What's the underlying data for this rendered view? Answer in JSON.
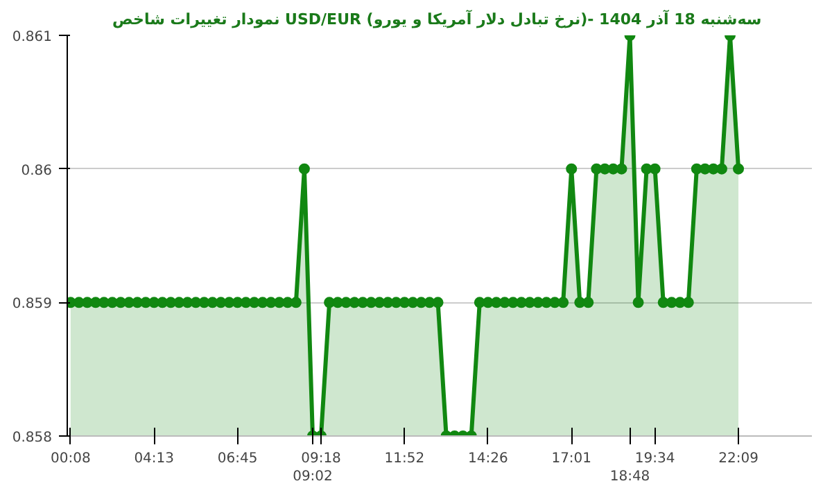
{
  "chart_data": {
    "type": "area",
    "title": "نمودار تغییرات شاخص USD/EUR (نرخ تبادل دلار آمریکا و یورو)- سه‌شنبه  18 آذر 1404",
    "categories": [
      "00:08",
      null,
      null,
      null,
      null,
      null,
      null,
      null,
      null,
      null,
      "04:13",
      null,
      null,
      null,
      null,
      null,
      null,
      null,
      null,
      null,
      "06:45",
      null,
      null,
      null,
      null,
      null,
      null,
      null,
      null,
      "09:02",
      "09:18",
      null,
      null,
      null,
      null,
      null,
      null,
      null,
      null,
      null,
      "11:52",
      null,
      null,
      null,
      null,
      null,
      null,
      null,
      null,
      null,
      "14:26",
      null,
      null,
      null,
      null,
      null,
      null,
      null,
      null,
      null,
      "17:01",
      null,
      null,
      null,
      null,
      null,
      null,
      "18:48",
      null,
      null,
      "19:34",
      null,
      null,
      null,
      null,
      null,
      null,
      null,
      null,
      null,
      "22:09"
    ],
    "series": [
      {
        "color": "#118811",
        "values": [
          0.859,
          0.859,
          0.859,
          0.859,
          0.859,
          0.859,
          0.859,
          0.859,
          0.859,
          0.859,
          0.859,
          0.859,
          0.859,
          0.859,
          0.859,
          0.859,
          0.859,
          0.859,
          0.859,
          0.859,
          0.859,
          0.859,
          0.859,
          0.859,
          0.859,
          0.859,
          0.859,
          0.859,
          0.86,
          0.858,
          0.858,
          0.859,
          0.859,
          0.859,
          0.859,
          0.859,
          0.859,
          0.859,
          0.859,
          0.859,
          0.859,
          0.859,
          0.859,
          0.859,
          0.859,
          0.858,
          0.858,
          0.858,
          0.858,
          0.859,
          0.859,
          0.859,
          0.859,
          0.859,
          0.859,
          0.859,
          0.859,
          0.859,
          0.859,
          0.859,
          0.86,
          0.859,
          0.859,
          0.86,
          0.86,
          0.86,
          0.86,
          0.861,
          0.859,
          0.86,
          0.86,
          0.859,
          0.859,
          0.859,
          0.859,
          0.86,
          0.86,
          0.86,
          0.86,
          0.861,
          0.86
        ]
      }
    ],
    "ylim": [
      0.858,
      0.861
    ],
    "yticks": [
      0.858,
      0.859,
      0.86,
      0.861
    ],
    "grid": "y",
    "marker": "circle",
    "line_style": "solid"
  }
}
